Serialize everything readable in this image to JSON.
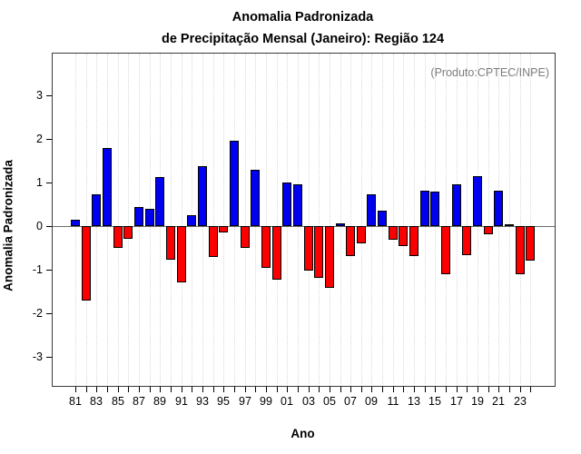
{
  "title": {
    "line1": "Anomalia Padronizada",
    "line2": "de Precipitação Mensal (Janeiro): Região 124"
  },
  "annotation": "(Produto:CPTEC/INPE)",
  "chart_data": {
    "type": "bar",
    "title": "Anomalia Padronizada de Precipitação Mensal (Janeiro): Região 124",
    "xlabel": "Ano",
    "ylabel": "Anomalia Padronizada",
    "years": [
      1981,
      1982,
      1983,
      1984,
      1985,
      1986,
      1987,
      1988,
      1989,
      1990,
      1991,
      1992,
      1993,
      1994,
      1995,
      1996,
      1997,
      1998,
      1999,
      2000,
      2001,
      2002,
      2003,
      2004,
      2005,
      2006,
      2007,
      2008,
      2009,
      2010,
      2011,
      2012,
      2013,
      2014,
      2015,
      2016,
      2017,
      2018,
      2019,
      2020,
      2021,
      2022,
      2023,
      2024
    ],
    "values": [
      0.15,
      -1.7,
      0.72,
      1.8,
      -0.5,
      -0.3,
      0.43,
      0.39,
      1.13,
      -0.77,
      -1.3,
      0.26,
      1.38,
      -0.71,
      -0.15,
      1.95,
      -0.49,
      1.3,
      -0.95,
      -1.22,
      1.0,
      0.96,
      -1.03,
      -1.18,
      -1.41,
      0.07,
      -0.68,
      -0.39,
      0.72,
      0.36,
      -0.31,
      -0.45,
      -0.68,
      0.82,
      0.8,
      -1.1,
      0.96,
      -0.66,
      1.15,
      -0.19,
      0.81,
      0.05,
      -1.1,
      -0.8
    ],
    "x_tick_labels": [
      "81",
      "83",
      "85",
      "87",
      "89",
      "91",
      "93",
      "95",
      "97",
      "99",
      "01",
      "03",
      "05",
      "07",
      "09",
      "11",
      "13",
      "15",
      "17",
      "19",
      "21",
      "23"
    ],
    "y_ticks": [
      -3,
      -2,
      -1,
      0,
      1,
      2,
      3
    ],
    "y_tick_labels": [
      "-3",
      "-2",
      "-1",
      "0",
      "1",
      "2",
      "3"
    ],
    "ylim": [
      -3.66,
      3.96
    ],
    "grid": "vertical-dotted-per-year",
    "legend": "none",
    "colors": {
      "positive": "#0000f0",
      "negative": "#fb0000",
      "bar_border": "#000000",
      "grid": "#d9d9d9",
      "zero_line": "#6e6e6e",
      "annotation": "#7d7d7d",
      "frame": "#3a3a3a"
    }
  }
}
